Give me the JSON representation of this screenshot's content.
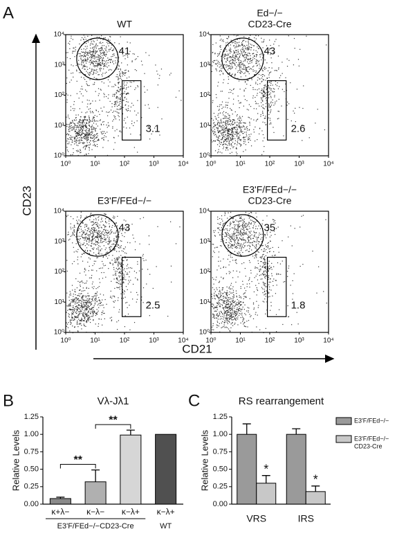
{
  "panel_labels": [
    "A",
    "B",
    "C"
  ],
  "flow": {
    "y_label": "CD23",
    "x_label": "CD21",
    "ticks": [
      {
        "value": 1,
        "label": "10⁰"
      },
      {
        "value": 10,
        "label": "10¹"
      },
      {
        "value": 100,
        "label": "10²"
      },
      {
        "value": 1000,
        "label": "10³"
      },
      {
        "value": 10000,
        "label": "10⁴"
      }
    ],
    "plots": [
      {
        "title": [
          "WT"
        ],
        "circle_gate": "41",
        "rect_gate": "3.1"
      },
      {
        "title": [
          "Ed−/−",
          "CD23-Cre"
        ],
        "circle_gate": "43",
        "rect_gate": "2.6"
      },
      {
        "title": [
          "E3'F/FEd−/−"
        ],
        "circle_gate": "43",
        "rect_gate": "2.5"
      },
      {
        "title": [
          "E3'F/FEd−/−",
          "CD23-Cre"
        ],
        "circle_gate": "35",
        "rect_gate": "1.8"
      }
    ]
  },
  "chart_data": [
    {
      "type": "bar",
      "title": "Vλ-Jλ1",
      "ylabel": "Relative Levels",
      "categories": [
        "κ+λ−",
        "κ−λ−",
        "κ−λ+",
        "κ−λ+"
      ],
      "values": [
        0.08,
        0.32,
        0.99,
        1.0
      ],
      "errors": [
        0.02,
        0.17,
        0.07,
        0
      ],
      "colors": [
        "#8a8a8a",
        "#b0b0b0",
        "#d6d6d6",
        "#505050"
      ],
      "group_labels": [
        "E3'F/FEd−/−CD23-Cre",
        "WT"
      ],
      "annotations": [
        "**",
        "**"
      ],
      "ylim": [
        0,
        1.25
      ],
      "yticks": [
        {
          "value": 0,
          "label": "0.00"
        },
        {
          "value": 0.25,
          "label": "0.25"
        },
        {
          "value": 0.5,
          "label": "0.50"
        },
        {
          "value": 0.75,
          "label": "0.75"
        },
        {
          "value": 1,
          "label": "1.00"
        },
        {
          "value": 1.25,
          "label": "1.25"
        }
      ]
    },
    {
      "type": "grouped_bar",
      "title": "RS rearrangement",
      "ylabel": "Relative Levels",
      "categories": [
        "VRS",
        "IRS"
      ],
      "series": [
        {
          "name": [
            "E3'F/FEd−/−"
          ],
          "color": "#9a9a9a",
          "values": [
            1.0,
            1.0
          ],
          "errors": [
            0.15,
            0.08
          ]
        },
        {
          "name": [
            "E3'F/FEd−/−",
            "CD23-Cre"
          ],
          "color": "#c8c8c8",
          "values": [
            0.3,
            0.18
          ],
          "errors": [
            0.11,
            0.08
          ]
        }
      ],
      "annotations": [
        "*",
        "*"
      ],
      "ylim": [
        0,
        1.25
      ],
      "yticks": [
        {
          "value": 0,
          "label": "0.00"
        },
        {
          "value": 0.25,
          "label": "0.25"
        },
        {
          "value": 0.5,
          "label": "0.50"
        },
        {
          "value": 0.75,
          "label": "0.75"
        },
        {
          "value": 1,
          "label": "1.00"
        },
        {
          "value": 1.25,
          "label": "1.25"
        }
      ]
    }
  ]
}
